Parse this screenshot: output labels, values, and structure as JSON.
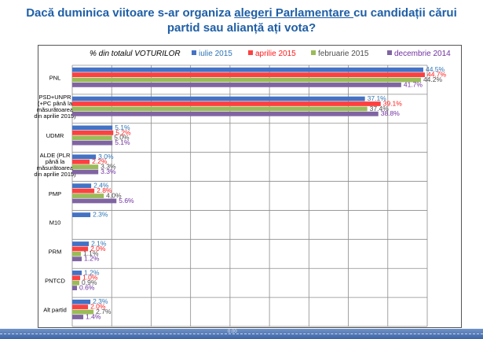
{
  "title": {
    "part1": "Dacă duminica viitoare s-ar organiza ",
    "underlined": "alegeri Parlamentare ",
    "part2": "cu candidații cărui",
    "line2": "partid sau alianță ați vota?"
  },
  "footer": {
    "zero_label": "0.00"
  },
  "chart_data": {
    "type": "bar",
    "orientation": "horizontal",
    "subtitle": "% din totalul VOTURILOR",
    "xlim": [
      0,
      45
    ],
    "grid": true,
    "categories": [
      [
        "PNL"
      ],
      [
        "PSD+UNPR",
        "(+PC până la",
        "măsurătoarea",
        "din aprilie 2015)"
      ],
      [
        "UDMR"
      ],
      [
        "ALDE (PLR",
        "până la",
        "măsurătoarea",
        "din aprilie 2015)"
      ],
      [
        "PMP"
      ],
      [
        "M10"
      ],
      [
        "PRM"
      ],
      [
        "PNTCD"
      ],
      [
        "Alt partid"
      ]
    ],
    "series": [
      {
        "name": "iulie 2015",
        "color": "#4472c4",
        "label_color": "#2e75b6",
        "values": [
          44.5,
          37.1,
          5.1,
          3.0,
          2.4,
          2.3,
          2.1,
          1.2,
          2.3
        ],
        "labels": [
          "44.5%",
          "37.1%",
          "5.1%",
          "3.0%",
          "2.4%",
          "2.3%",
          "2.1%",
          "1.2%",
          "2.3%"
        ]
      },
      {
        "name": "aprilie 2015",
        "color": "#ff4040",
        "label_color": "#ff1a1a",
        "values": [
          44.7,
          39.1,
          5.2,
          2.2,
          2.8,
          null,
          2.0,
          1.0,
          2.0
        ],
        "labels": [
          "44.7%",
          "39.1%",
          "5.2%",
          "2.2%",
          "2.8%",
          null,
          "2.0%",
          "1.0%",
          "2.0%"
        ]
      },
      {
        "name": "februarie 2015",
        "color": "#9bbb59",
        "label_color": "#4d4d4d",
        "values": [
          44.2,
          37.4,
          5.0,
          3.3,
          4.0,
          null,
          1.1,
          0.9,
          2.7
        ],
        "labels": [
          "44.2%",
          "37.4%",
          "5.0%",
          "3.3%",
          "4.0%",
          null,
          "1.1%",
          "0.9%",
          "2.7%"
        ]
      },
      {
        "name": "decembrie 2014",
        "color": "#8064a2",
        "label_color": "#7030a0",
        "values": [
          41.7,
          38.8,
          5.1,
          3.3,
          5.6,
          null,
          1.2,
          0.6,
          1.4
        ],
        "labels": [
          "41.7%",
          "38.8%",
          "5.1%",
          "3.3%",
          "5.6%",
          null,
          "1.2%",
          "0.6%",
          "1.4%"
        ]
      }
    ]
  }
}
